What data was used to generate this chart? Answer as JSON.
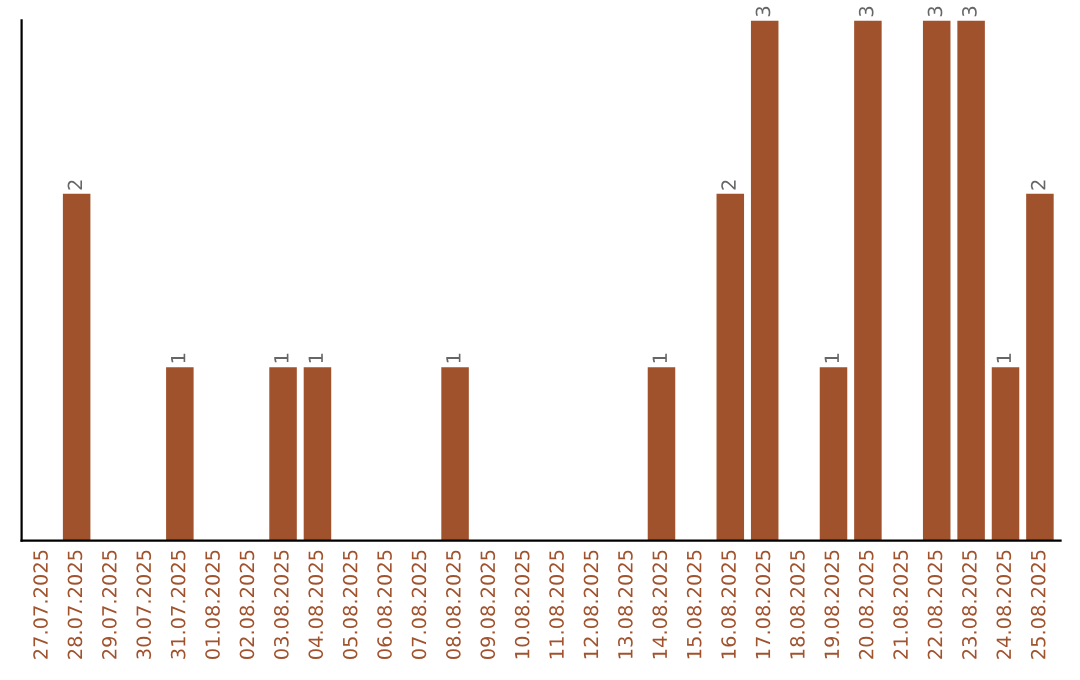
{
  "chart_data": {
    "type": "bar",
    "categories": [
      "27.07.2025",
      "28.07.2025",
      "29.07.2025",
      "30.07.2025",
      "31.07.2025",
      "01.08.2025",
      "02.08.2025",
      "03.08.2025",
      "04.08.2025",
      "05.08.2025",
      "06.08.2025",
      "07.08.2025",
      "08.08.2025",
      "09.08.2025",
      "10.08.2025",
      "11.08.2025",
      "12.08.2025",
      "13.08.2025",
      "14.08.2025",
      "15.08.2025",
      "16.08.2025",
      "17.08.2025",
      "18.08.2025",
      "19.08.2025",
      "20.08.2025",
      "21.08.2025",
      "22.08.2025",
      "23.08.2025",
      "24.08.2025",
      "25.08.2025"
    ],
    "values": [
      0,
      2,
      0,
      0,
      1,
      0,
      0,
      1,
      1,
      0,
      0,
      0,
      1,
      0,
      0,
      0,
      0,
      0,
      1,
      0,
      2,
      3,
      0,
      1,
      3,
      0,
      3,
      3,
      1,
      2
    ],
    "value_labels": [
      null,
      "2",
      null,
      null,
      "1",
      null,
      null,
      "1",
      "1",
      null,
      null,
      null,
      "1",
      null,
      null,
      null,
      null,
      null,
      "1",
      null,
      "2",
      "3",
      null,
      "1",
      "3",
      null,
      "3",
      "3",
      "1",
      "2"
    ],
    "color": "#a0522d",
    "ylim": [
      0,
      3
    ],
    "tick_labels": "x",
    "grid": false
  }
}
